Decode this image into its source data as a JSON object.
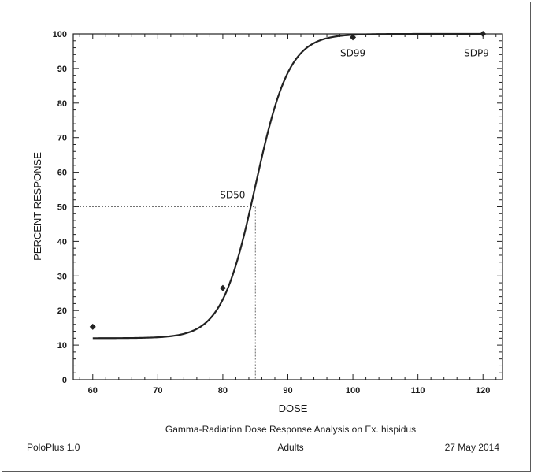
{
  "chart_data": {
    "type": "line",
    "title": "Gamma-Radiation Dose Response Analysis on Ex. hispidus",
    "xlabel": "DOSE",
    "ylabel": "PERCENT RESPONSE",
    "xlim": [
      57,
      123
    ],
    "ylim": [
      0,
      100
    ],
    "x_ticks": [
      60,
      70,
      80,
      90,
      100,
      110,
      120
    ],
    "y_ticks": [
      0,
      10,
      20,
      30,
      40,
      50,
      60,
      70,
      80,
      90,
      100
    ],
    "grid": false,
    "legend": "none",
    "fitted_curve": {
      "model": "logistic-with-control",
      "x_range": [
        60,
        120
      ],
      "control_response": 12,
      "midpoint_dose": 85,
      "points": [
        {
          "x": 60,
          "y": 12
        },
        {
          "x": 70,
          "y": 12.2
        },
        {
          "x": 75,
          "y": 13.5
        },
        {
          "x": 78,
          "y": 17
        },
        {
          "x": 80,
          "y": 22
        },
        {
          "x": 82,
          "y": 30
        },
        {
          "x": 84,
          "y": 44
        },
        {
          "x": 85,
          "y": 50
        },
        {
          "x": 86,
          "y": 58
        },
        {
          "x": 88,
          "y": 72
        },
        {
          "x": 90,
          "y": 85
        },
        {
          "x": 92,
          "y": 92
        },
        {
          "x": 95,
          "y": 97
        },
        {
          "x": 98,
          "y": 99
        },
        {
          "x": 100,
          "y": 99.5
        },
        {
          "x": 105,
          "y": 100
        },
        {
          "x": 120,
          "y": 100
        }
      ]
    },
    "observed_points": [
      {
        "x": 60,
        "y": 15.3
      },
      {
        "x": 80,
        "y": 26.5
      },
      {
        "x": 100,
        "y": 99
      },
      {
        "x": 120,
        "y": 100
      }
    ],
    "reference_lines": [
      {
        "name": "SD50",
        "dose": 85,
        "response": 50
      }
    ],
    "annotations": [
      {
        "label": "SD50",
        "x": 81.5,
        "y": 52.5
      },
      {
        "label": "SD99",
        "x": 100,
        "y": 93.5
      },
      {
        "label": "SDP9",
        "x": 119,
        "y": 93.5
      }
    ]
  },
  "footer": {
    "program": "PoloPlus 1.0",
    "group": "Adults",
    "date": "27 May 2014"
  }
}
